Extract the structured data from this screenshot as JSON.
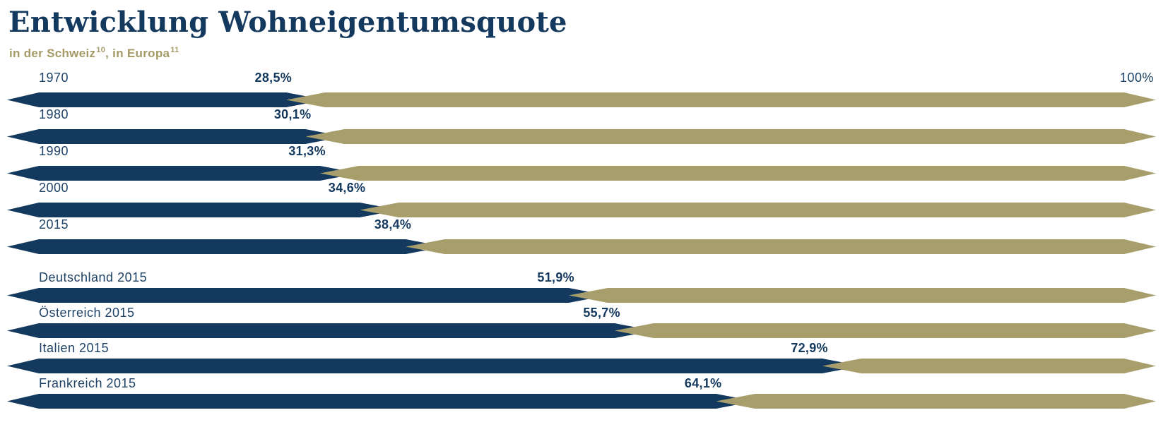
{
  "title": "Entwicklung Wohneigentumsquote",
  "subtitle": {
    "text1": "in der Schweiz",
    "sup1": "10",
    "text2": ", in Europa",
    "sup2": "11"
  },
  "axis_max_label": "100%",
  "colors": {
    "navy": "#14395E",
    "olive": "#A89E6C",
    "label_navy": "#1E4266",
    "subtitle_olive": "#A49A68"
  },
  "chart_data": {
    "type": "bar",
    "orientation": "horizontal",
    "title": "Entwicklung Wohneigentumsquote",
    "subtitle": "in der Schweiz (Fussnote 10), in Europa (Fussnote 11)",
    "unit": "%",
    "xlim": [
      0,
      100
    ],
    "max_reference_label": "100%",
    "legend": "none",
    "grid": false,
    "series": [
      {
        "name": "Schweiz",
        "categories": [
          "1970",
          "1980",
          "1990",
          "2000",
          "2015"
        ],
        "values": [
          28.5,
          30.1,
          31.3,
          34.6,
          38.4
        ],
        "display_values": [
          "28,5%",
          "30,1%",
          "31,3%",
          "34,6%",
          "38,4%"
        ]
      },
      {
        "name": "Europa",
        "categories": [
          "Deutschland 2015",
          "Österreich 2015",
          "Italien 2015",
          "Frankreich 2015"
        ],
        "values": [
          51.9,
          55.7,
          72.9,
          64.1
        ],
        "display_values": [
          "51,9%",
          "55,7%",
          "72,9%",
          "64,1%"
        ]
      }
    ]
  }
}
